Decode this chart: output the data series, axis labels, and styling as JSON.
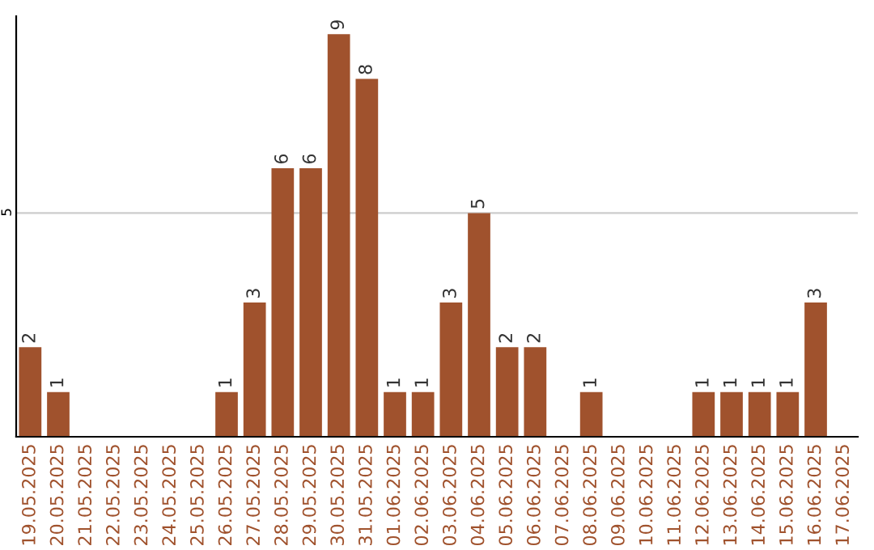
{
  "chart_data": {
    "type": "bar",
    "categories": [
      "19.05.2025",
      "20.05.2025",
      "21.05.2025",
      "22.05.2025",
      "23.05.2025",
      "24.05.2025",
      "25.05.2025",
      "26.05.2025",
      "27.05.2025",
      "28.05.2025",
      "29.05.2025",
      "30.05.2025",
      "31.05.2025",
      "01.06.2025",
      "02.06.2025",
      "03.06.2025",
      "04.06.2025",
      "05.06.2025",
      "06.06.2025",
      "07.06.2025",
      "08.06.2025",
      "09.06.2025",
      "10.06.2025",
      "11.06.2025",
      "12.06.2025",
      "13.06.2025",
      "14.06.2025",
      "15.06.2025",
      "16.06.2025",
      "17.06.2025"
    ],
    "values": [
      2,
      1,
      0,
      0,
      0,
      0,
      0,
      1,
      3,
      6,
      6,
      9,
      8,
      1,
      1,
      3,
      5,
      2,
      2,
      0,
      1,
      0,
      0,
      0,
      1,
      1,
      1,
      1,
      3,
      0
    ],
    "value_labels": [
      "2",
      "1",
      null,
      null,
      null,
      null,
      null,
      "1",
      "3",
      "6",
      "6",
      "9",
      "8",
      "1",
      "1",
      "3",
      "5",
      "2",
      "2",
      null,
      "1",
      null,
      null,
      null,
      "1",
      "1",
      "1",
      "1",
      "3",
      null
    ],
    "color": "#a0522d",
    "ylim": [
      0,
      9.4
    ],
    "yticks": [
      5
    ],
    "grid": "y"
  }
}
